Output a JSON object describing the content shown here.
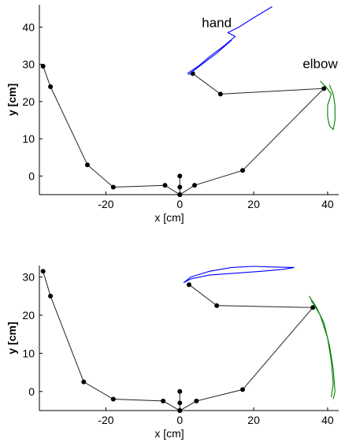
{
  "chart_data": [
    {
      "type": "line",
      "xlabel": "x [cm]",
      "ylabel": "y [cm]",
      "xlim": [
        -38,
        43
      ],
      "ylim": [
        -5,
        46
      ],
      "xticks": [
        -20,
        0,
        20,
        40
      ],
      "yticks": [
        0,
        10,
        20,
        30,
        40
      ],
      "annotations": [
        {
          "text": "hand",
          "x": 10,
          "y": 40
        },
        {
          "text": "elbow",
          "x": 38,
          "y": 29
        }
      ],
      "series": [
        {
          "color": "#222222",
          "points": [
            [
              -37,
              29.5
            ],
            [
              -35,
              24
            ],
            [
              -25,
              3
            ],
            [
              -18,
              -3
            ],
            [
              -4,
              -2.5
            ],
            [
              0,
              -5
            ],
            [
              4,
              -2.5
            ],
            [
              17,
              1.5
            ],
            [
              39,
              23.5
            ],
            [
              11,
              22
            ],
            [
              3.5,
              27.5
            ]
          ],
          "joints": true
        },
        {
          "color": "#0000ff",
          "points": [
            [
              2,
              27.5
            ],
            [
              5,
              29.5
            ],
            [
              8,
              32
            ],
            [
              12,
              35
            ],
            [
              15,
              37.5
            ],
            [
              13,
              38.5
            ],
            [
              16,
              40
            ],
            [
              20,
              42.5
            ],
            [
              25,
              45.5
            ]
          ]
        },
        {
          "color": "#0000ff",
          "points": [
            [
              2.3,
              27.2
            ],
            [
              6,
              30
            ],
            [
              10,
              33
            ],
            [
              14,
              36.5
            ]
          ]
        },
        {
          "color": "#008000",
          "points": [
            [
              38,
              25.5
            ],
            [
              39.5,
              24
            ],
            [
              41,
              22
            ],
            [
              40,
              19
            ],
            [
              40,
              16
            ],
            [
              40.5,
              13.5
            ],
            [
              41.5,
              12.5
            ],
            [
              42,
              15
            ],
            [
              42,
              19
            ],
            [
              41.5,
              22
            ],
            [
              40.5,
              24.5
            ]
          ]
        }
      ],
      "stick_points": [
        [
          0,
          0
        ],
        [
          0,
          -3
        ],
        [
          0,
          -5
        ]
      ]
    },
    {
      "type": "line",
      "xlabel": "x [cm]",
      "ylabel": "y [cm]",
      "xlim": [
        -38,
        43
      ],
      "ylim": [
        -5,
        33
      ],
      "xticks": [
        -20,
        0,
        20,
        40
      ],
      "yticks": [
        0,
        10,
        20,
        30
      ],
      "annotations": [],
      "series": [
        {
          "color": "#222222",
          "points": [
            [
              -37,
              31.5
            ],
            [
              -35,
              25
            ],
            [
              -26,
              2.5
            ],
            [
              -18,
              -2
            ],
            [
              -4.5,
              -2.5
            ],
            [
              0,
              -5
            ],
            [
              4.5,
              -2.5
            ],
            [
              17,
              0.5
            ],
            [
              36,
              22
            ],
            [
              10,
              22.5
            ],
            [
              2.5,
              28
            ]
          ],
          "joints": true
        },
        {
          "color": "#0000ff",
          "points": [
            [
              1,
              28.5
            ],
            [
              3,
              30
            ],
            [
              8,
              31.5
            ],
            [
              14,
              32.5
            ],
            [
              20,
              32.8
            ],
            [
              26,
              32.6
            ],
            [
              31,
              32.5
            ],
            [
              28,
              32
            ],
            [
              22,
              31.5
            ],
            [
              15,
              31
            ],
            [
              8,
              30.5
            ],
            [
              3,
              29.5
            ],
            [
              1,
              28.5
            ]
          ]
        },
        {
          "color": "#008000",
          "points": [
            [
              35,
              25
            ],
            [
              37,
              22
            ],
            [
              39,
              18
            ],
            [
              40.5,
              12
            ],
            [
              41.5,
              6
            ],
            [
              42,
              0
            ],
            [
              41.5,
              -2
            ]
          ]
        },
        {
          "color": "#008000",
          "points": [
            [
              35.5,
              24
            ],
            [
              38,
              20
            ],
            [
              40,
              14
            ],
            [
              41,
              8
            ],
            [
              41.5,
              2
            ],
            [
              41,
              -1.5
            ]
          ]
        }
      ],
      "stick_points": [
        [
          0,
          0
        ],
        [
          0,
          -3
        ],
        [
          0,
          -5
        ]
      ]
    }
  ]
}
